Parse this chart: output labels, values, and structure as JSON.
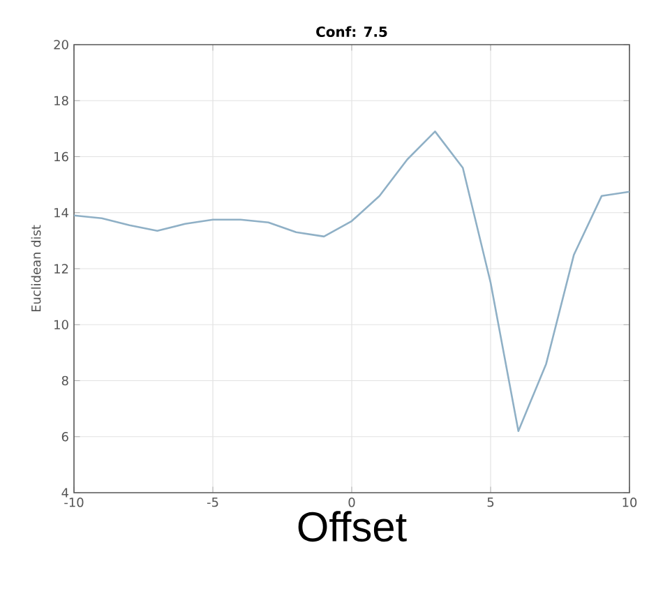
{
  "chart_data": {
    "type": "line",
    "title": "Conf: 7.5",
    "xlabel": "Offset",
    "ylabel": "Euclidean dist",
    "x": [
      -10,
      -9,
      -8,
      -7,
      -6,
      -5,
      -4,
      -3,
      -2,
      -1,
      0,
      1,
      2,
      3,
      4,
      5,
      6,
      7,
      8,
      9,
      10
    ],
    "series": [
      {
        "color": "#8fb0c6",
        "values": [
          13.9,
          13.8,
          13.55,
          13.35,
          13.6,
          13.75,
          13.75,
          13.65,
          13.3,
          13.15,
          13.7,
          14.6,
          15.9,
          16.9,
          15.6,
          11.5,
          6.2,
          8.6,
          12.5,
          14.6,
          14.75
        ]
      }
    ],
    "xlim": [
      -10,
      10
    ],
    "ylim": [
      4,
      20
    ],
    "xticks": [
      -10,
      -5,
      0,
      5,
      10
    ],
    "yticks": [
      4,
      6,
      8,
      10,
      12,
      14,
      16,
      18,
      20
    ],
    "grid": true,
    "marker": "none",
    "line_style": "solid"
  }
}
